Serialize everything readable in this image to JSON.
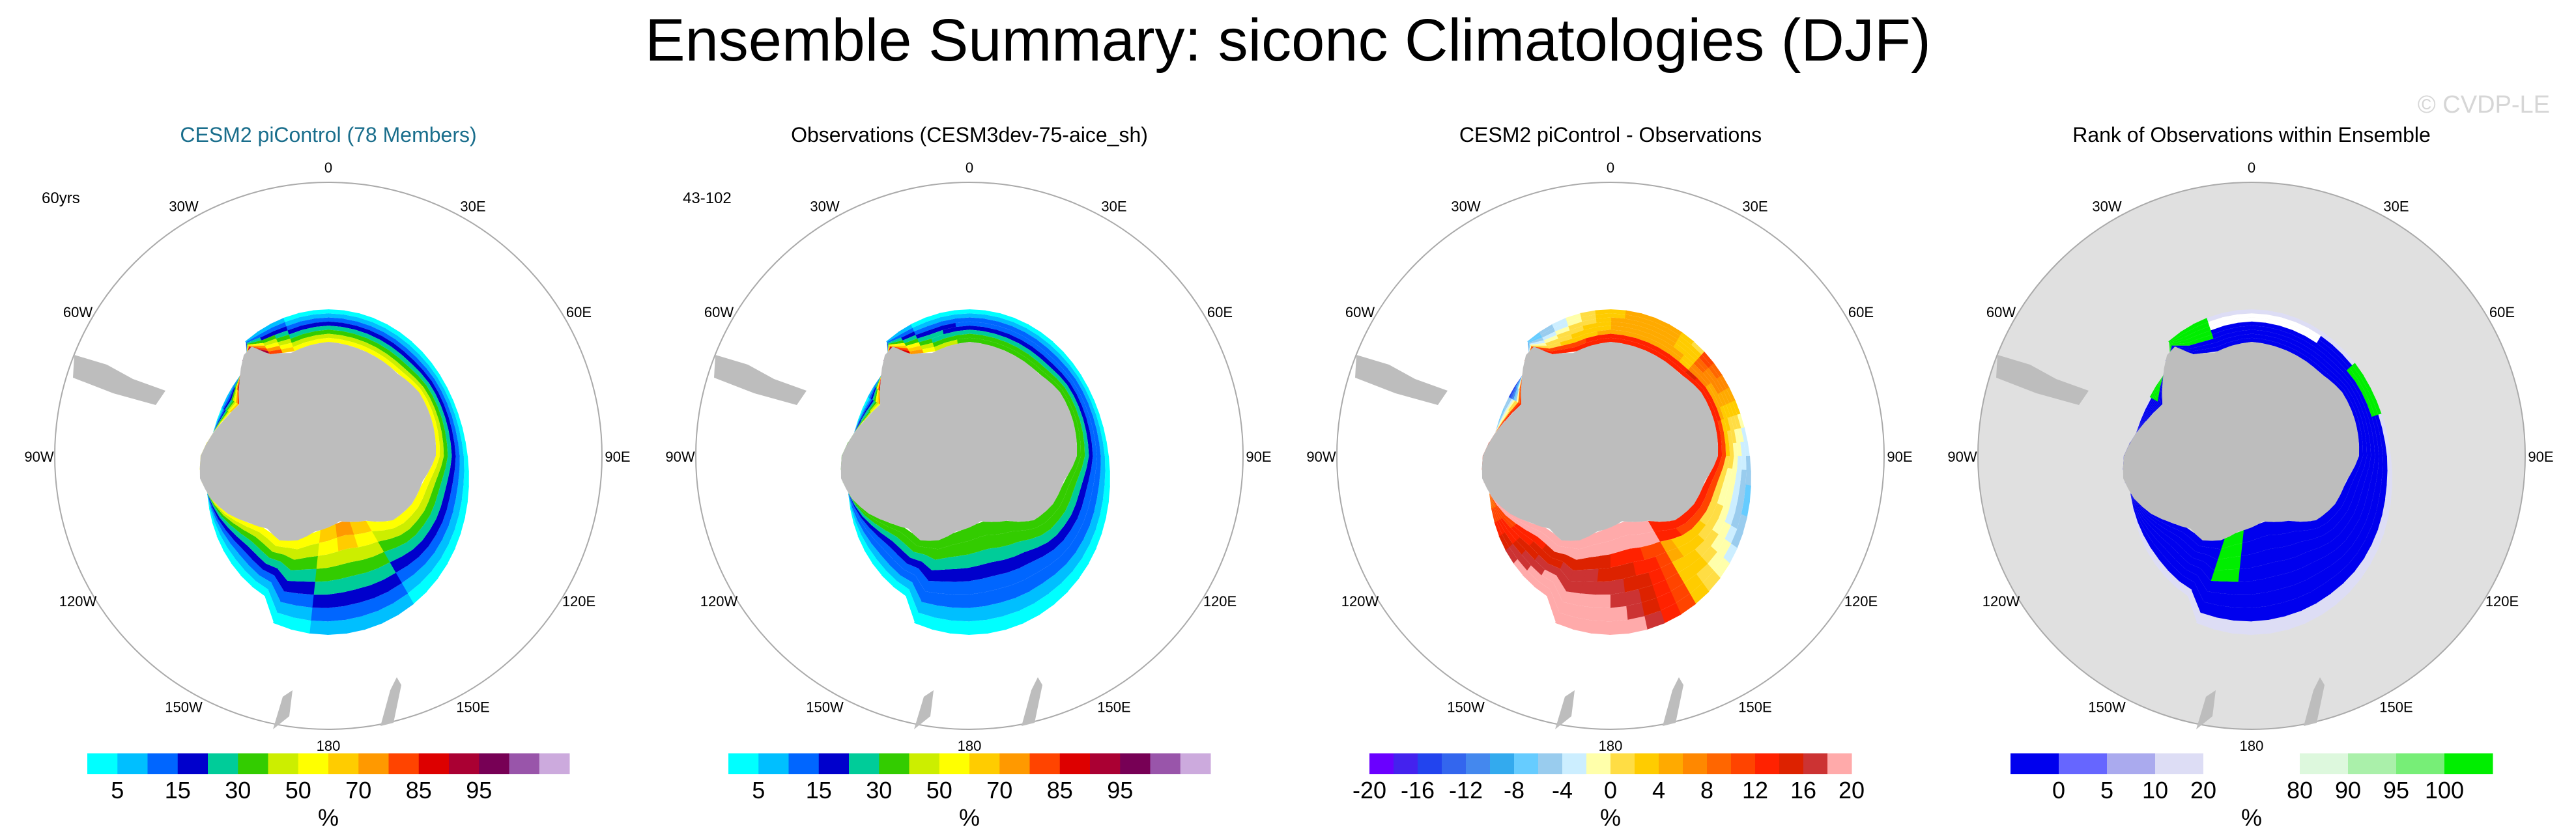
{
  "figure": {
    "title": "Ensemble Summary: siconc Climatologies (DJF)",
    "watermark": "© CVDP-LE"
  },
  "colors": {
    "land": "#bdbdbd",
    "rank_background": "#e0e0e0",
    "ring": "#aaaaaa",
    "title_highlight": "#1a6e8c"
  },
  "chart_data": [
    {
      "type": "heatmap",
      "projection": "south-polar-stereographic",
      "title": "CESM2 piControl (78 Members)",
      "title_color": "#1a6e8c",
      "annotation": "60yrs",
      "longitude_labels": [
        "0",
        "30E",
        "60E",
        "90E",
        "120E",
        "150E",
        "180",
        "150W",
        "120W",
        "90W",
        "60W",
        "30W"
      ],
      "field": "ice-mean",
      "colorbar": {
        "colors": [
          "#00ffff",
          "#00bfff",
          "#0066ff",
          "#0000cc",
          "#00cc99",
          "#33cc00",
          "#ccee00",
          "#ffff00",
          "#ffcc00",
          "#ff9900",
          "#ff4400",
          "#dd0000",
          "#aa0033",
          "#770055",
          "#9955aa",
          "#ccaadd"
        ],
        "tick_labels": [
          "5",
          "15",
          "30",
          "50",
          "70",
          "85",
          "95"
        ],
        "tick_boundaries": [
          1,
          3,
          5,
          7,
          9,
          11,
          13
        ],
        "unit": "%"
      }
    },
    {
      "type": "heatmap",
      "projection": "south-polar-stereographic",
      "title": "Observations (CESM3dev-75-aice_sh)",
      "annotation": "43-102",
      "longitude_labels": [
        "0",
        "30E",
        "60E",
        "90E",
        "120E",
        "150E",
        "180",
        "150W",
        "120W",
        "90W",
        "60W",
        "30W"
      ],
      "field": "ice-obs",
      "colorbar": {
        "colors": [
          "#00ffff",
          "#00bfff",
          "#0066ff",
          "#0000cc",
          "#00cc99",
          "#33cc00",
          "#ccee00",
          "#ffff00",
          "#ffcc00",
          "#ff9900",
          "#ff4400",
          "#dd0000",
          "#aa0033",
          "#770055",
          "#9955aa",
          "#ccaadd"
        ],
        "tick_labels": [
          "5",
          "15",
          "30",
          "50",
          "70",
          "85",
          "95"
        ],
        "tick_boundaries": [
          1,
          3,
          5,
          7,
          9,
          11,
          13
        ],
        "unit": "%"
      }
    },
    {
      "type": "heatmap",
      "projection": "south-polar-stereographic",
      "title": "CESM2 piControl - Observations",
      "annotation": "",
      "longitude_labels": [
        "0",
        "30E",
        "60E",
        "90E",
        "120E",
        "150E",
        "180",
        "150W",
        "120W",
        "90W",
        "60W",
        "30W"
      ],
      "field": "difference",
      "colorbar": {
        "colors": [
          "#6a00ff",
          "#4422ee",
          "#2244ee",
          "#3366ee",
          "#4488ee",
          "#33aaee",
          "#66ccff",
          "#99ccee",
          "#cceeff",
          "#ffffaa",
          "#ffdd44",
          "#ffcc00",
          "#ffaa00",
          "#ff8800",
          "#ff6600",
          "#ff4400",
          "#ff2200",
          "#dd2200",
          "#cc3333",
          "#ffaaaa"
        ],
        "tick_labels": [
          "-20",
          "-16",
          "-12",
          "-8",
          "-4",
          "0",
          "4",
          "8",
          "12",
          "16",
          "20"
        ],
        "tick_boundaries": [
          0,
          2,
          4,
          6,
          8,
          10,
          12,
          14,
          16,
          18,
          20
        ],
        "unit": "%"
      }
    },
    {
      "type": "heatmap",
      "projection": "south-polar-stereographic",
      "title": "Rank of Observations within Ensemble",
      "annotation": "",
      "longitude_labels": [
        "0",
        "30E",
        "60E",
        "90E",
        "120E",
        "150E",
        "180",
        "150W",
        "120W",
        "90W",
        "60W",
        "30W"
      ],
      "field": "rank",
      "colorbar": {
        "colors": [
          "#0000ee",
          "#6666ff",
          "#aaaaee",
          "#ddddf5",
          "#ffffff",
          "#ffffff",
          "#ddf8dd",
          "#aaf0aa",
          "#77ee77",
          "#00ee00"
        ],
        "tick_labels": [
          "0",
          "5",
          "10",
          "20",
          "80",
          "90",
          "95",
          "100"
        ],
        "tick_boundaries": [
          1,
          2,
          3,
          4,
          6,
          7,
          8,
          9
        ],
        "unit": "%"
      }
    }
  ]
}
